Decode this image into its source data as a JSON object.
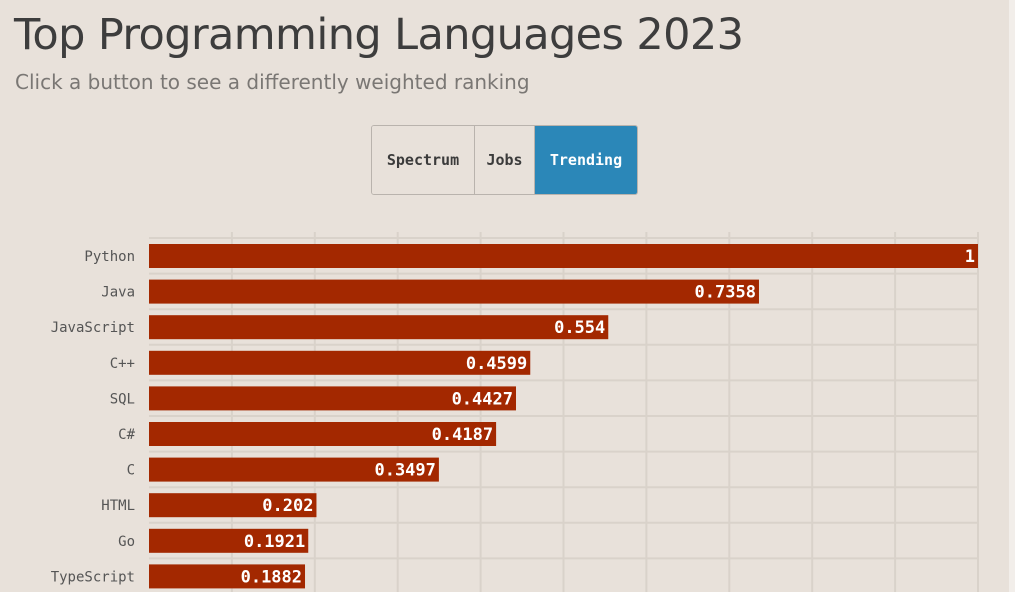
{
  "title": "Top Programming Languages 2023",
  "subtitle": "Click a button to see a differently weighted ranking",
  "buttons": [
    {
      "label": "Spectrum",
      "active": false
    },
    {
      "label": "Jobs",
      "active": false
    },
    {
      "label": "Trending",
      "active": true
    }
  ],
  "colors": {
    "background": "#e8e1da",
    "bar": "#a32800",
    "active_button": "#2b87b8",
    "grid": "#d9d2ca"
  },
  "chart_data": {
    "type": "bar",
    "orientation": "horizontal",
    "categories": [
      "Python",
      "Java",
      "JavaScript",
      "C++",
      "SQL",
      "C#",
      "C",
      "HTML",
      "Go",
      "TypeScript"
    ],
    "values": [
      1,
      0.7358,
      0.554,
      0.4599,
      0.4427,
      0.4187,
      0.3497,
      0.202,
      0.1921,
      0.1882
    ],
    "value_labels": [
      "1",
      "0.7358",
      "0.554",
      "0.4599",
      "0.4427",
      "0.4187",
      "0.3497",
      "0.202",
      "0.1921",
      "0.1882"
    ],
    "xlim": [
      0,
      1
    ],
    "grid": true,
    "title": "Top Programming Languages 2023",
    "xlabel": "",
    "ylabel": ""
  }
}
